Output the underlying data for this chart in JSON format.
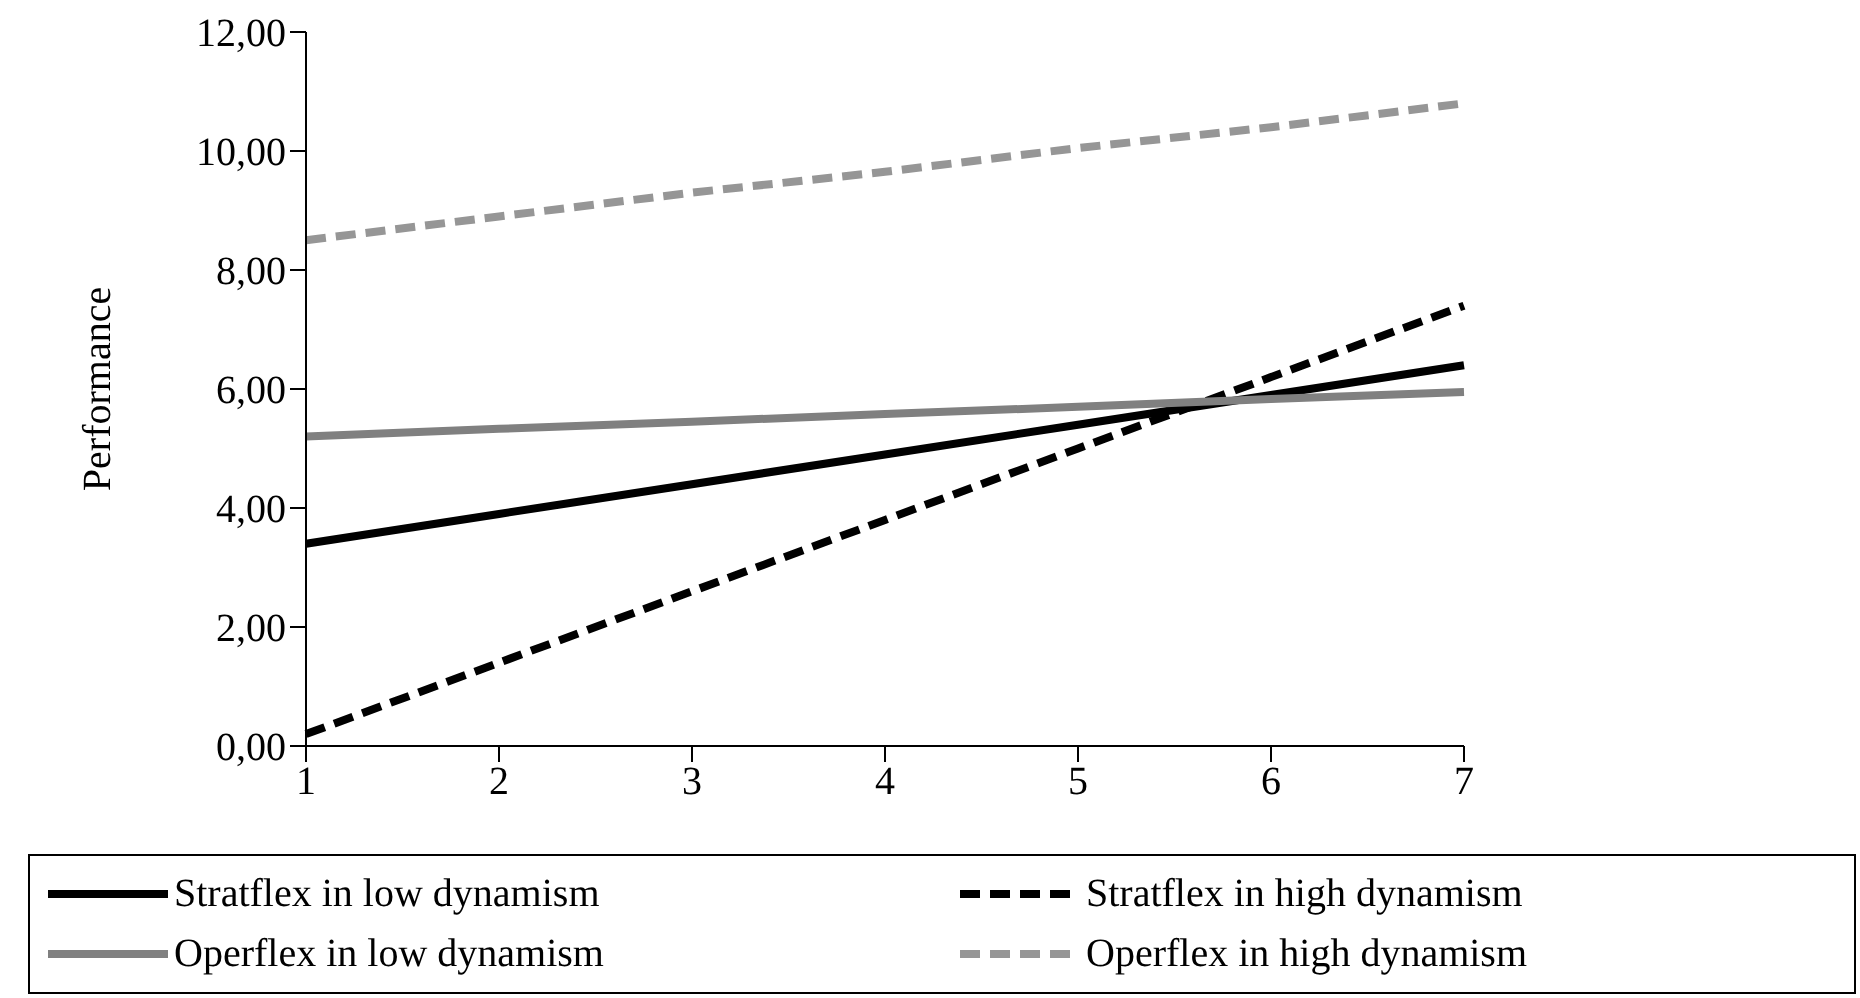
{
  "chart_data": {
    "type": "line",
    "ylabel": "Performance",
    "categories": [
      "1",
      "2",
      "3",
      "4",
      "5",
      "6",
      "7"
    ],
    "ylim": [
      0,
      12
    ],
    "yticks": [
      {
        "value": 0,
        "label": "0,00"
      },
      {
        "value": 2,
        "label": "2,00"
      },
      {
        "value": 4,
        "label": "4,00"
      },
      {
        "value": 6,
        "label": "6,00"
      },
      {
        "value": 8,
        "label": "8,00"
      },
      {
        "value": 10,
        "label": "10,00"
      },
      {
        "value": 12,
        "label": "12,00"
      }
    ],
    "grid": false,
    "legend": "bottom",
    "marker": "none",
    "series": [
      {
        "name": "Stratflex in low dynamism",
        "color": "#000000",
        "line_style": "solid",
        "values": [
          3.4,
          3.9,
          4.4,
          4.9,
          5.4,
          5.9,
          6.4
        ]
      },
      {
        "name": "Stratflex in high dynamism",
        "color": "#000000",
        "line_style": "dashed",
        "values": [
          0.2,
          1.4,
          2.6,
          3.8,
          5.0,
          6.2,
          7.4
        ]
      },
      {
        "name": "Operflex in low dynamism",
        "color": "#808080",
        "line_style": "solid",
        "values": [
          5.2,
          5.33,
          5.45,
          5.58,
          5.7,
          5.83,
          5.95
        ]
      },
      {
        "name": "Operflex in high dynamism",
        "color": "#969696",
        "line_style": "dashed",
        "values": [
          8.5,
          8.9,
          9.3,
          9.65,
          10.05,
          10.4,
          10.8
        ]
      }
    ]
  }
}
